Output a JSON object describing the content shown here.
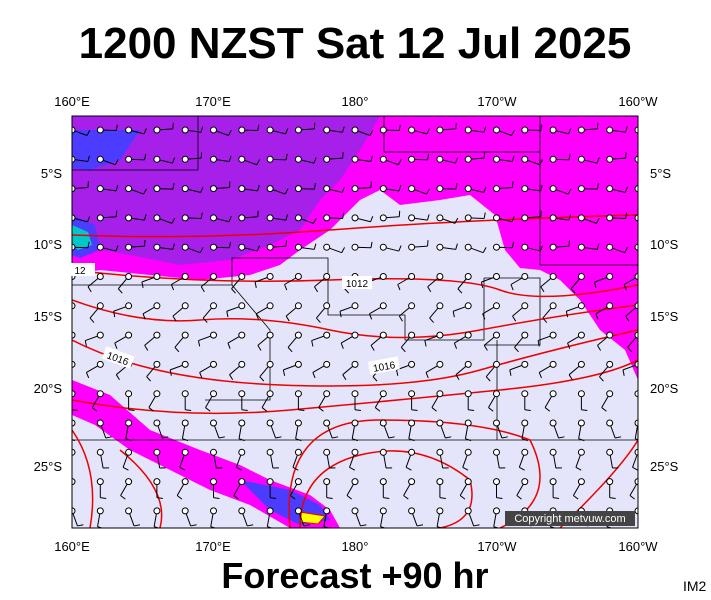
{
  "title": "1200 NZST Sat 12 Jul 2025",
  "footer": "Forecast +90 hr",
  "corner_label": "IM2",
  "copyright": "Copyright metvuw.com",
  "lon_labels": [
    "160°E",
    "170°E",
    "180°",
    "170°W",
    "160°W"
  ],
  "lat_labels": [
    "5°S",
    "10°S",
    "15°S",
    "20°S",
    "25°S"
  ],
  "isobar_labels": [
    "12",
    "1012",
    "1016",
    "1016"
  ]
}
